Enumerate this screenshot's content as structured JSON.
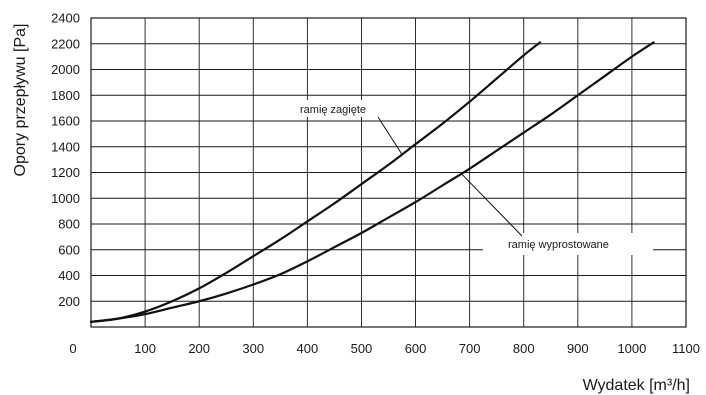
{
  "chart_data": {
    "type": "line",
    "xlabel": "Wydatek [m³/h]",
    "ylabel": "Opory przepływu [Pa]",
    "xlim": [
      0,
      1100
    ],
    "ylim": [
      0,
      2400
    ],
    "x_ticks": [
      0,
      100,
      200,
      300,
      400,
      500,
      600,
      700,
      800,
      900,
      1000,
      1100
    ],
    "y_ticks": [
      200,
      400,
      600,
      800,
      1000,
      1200,
      1400,
      1600,
      1800,
      2000,
      2200,
      2400
    ],
    "grid": true,
    "series": [
      {
        "name": "ramię zagięte",
        "x": [
          0,
          50,
          100,
          150,
          200,
          250,
          300,
          350,
          400,
          450,
          500,
          550,
          600,
          650,
          700,
          750,
          800,
          830
        ],
        "y": [
          40,
          65,
          120,
          200,
          300,
          420,
          550,
          680,
          820,
          960,
          1110,
          1260,
          1420,
          1580,
          1750,
          1930,
          2110,
          2210
        ]
      },
      {
        "name": "ramię wyprostowane",
        "x": [
          0,
          50,
          100,
          150,
          200,
          250,
          300,
          350,
          400,
          450,
          500,
          550,
          600,
          650,
          700,
          750,
          800,
          850,
          900,
          950,
          1000,
          1040
        ],
        "y": [
          40,
          65,
          100,
          150,
          200,
          260,
          330,
          410,
          510,
          620,
          730,
          850,
          970,
          1100,
          1230,
          1370,
          1510,
          1650,
          1800,
          1950,
          2100,
          2210
        ]
      }
    ]
  }
}
